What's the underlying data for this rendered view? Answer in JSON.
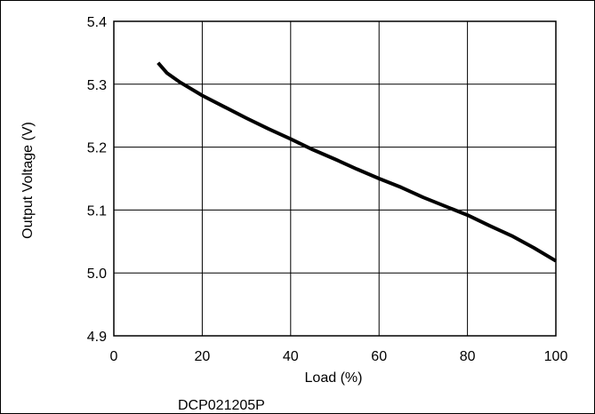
{
  "chart_data": {
    "type": "line",
    "title": "",
    "xlabel": "Load (%)",
    "ylabel": "Output Voltage (V)",
    "caption": "DCP021205P",
    "xlim": [
      0,
      100
    ],
    "ylim": [
      4.9,
      5.4
    ],
    "x_ticks": [
      "0",
      "20",
      "40",
      "60",
      "80",
      "100"
    ],
    "y_ticks": [
      "4.9",
      "5.0",
      "5.1",
      "5.2",
      "5.3",
      "5.4"
    ],
    "grid": true,
    "series": [
      {
        "x": [
          10,
          12,
          15,
          20,
          25,
          30,
          35,
          40,
          45,
          50,
          55,
          60,
          65,
          70,
          75,
          80,
          85,
          90,
          95,
          100
        ],
        "y": [
          5.334,
          5.318,
          5.303,
          5.282,
          5.264,
          5.246,
          5.229,
          5.213,
          5.196,
          5.181,
          5.165,
          5.15,
          5.136,
          5.12,
          5.106,
          5.092,
          5.075,
          5.059,
          5.04,
          5.019
        ]
      }
    ]
  }
}
